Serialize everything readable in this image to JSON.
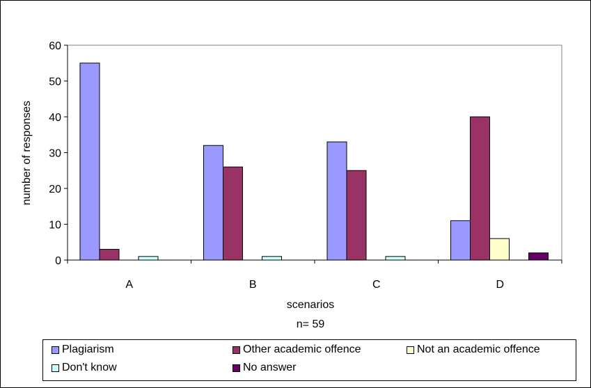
{
  "chart_data": {
    "type": "bar",
    "categories": [
      "A",
      "B",
      "C",
      "D"
    ],
    "series": [
      {
        "name": "Plagiarism",
        "color": "#9999ff",
        "values": [
          55,
          32,
          33,
          11
        ]
      },
      {
        "name": "Other academic offence",
        "color": "#993366",
        "values": [
          3,
          26,
          25,
          40
        ]
      },
      {
        "name": "Not an academic offence",
        "color": "#ffffcc",
        "values": [
          0,
          0,
          0,
          6
        ]
      },
      {
        "name": "Don't know",
        "color": "#ccffff",
        "values": [
          1,
          1,
          1,
          0
        ]
      },
      {
        "name": "No answer",
        "color": "#660066",
        "values": [
          0,
          0,
          0,
          2
        ]
      }
    ],
    "ylabel": "number of responses",
    "xlabel": "scenarios",
    "xlabel_note": "n= 59",
    "ylim": [
      0,
      60
    ],
    "yticks": [
      0,
      10,
      20,
      30,
      40,
      50,
      60
    ],
    "legend_position": "bottom",
    "grid": false,
    "plot_background": "#ffffff"
  }
}
